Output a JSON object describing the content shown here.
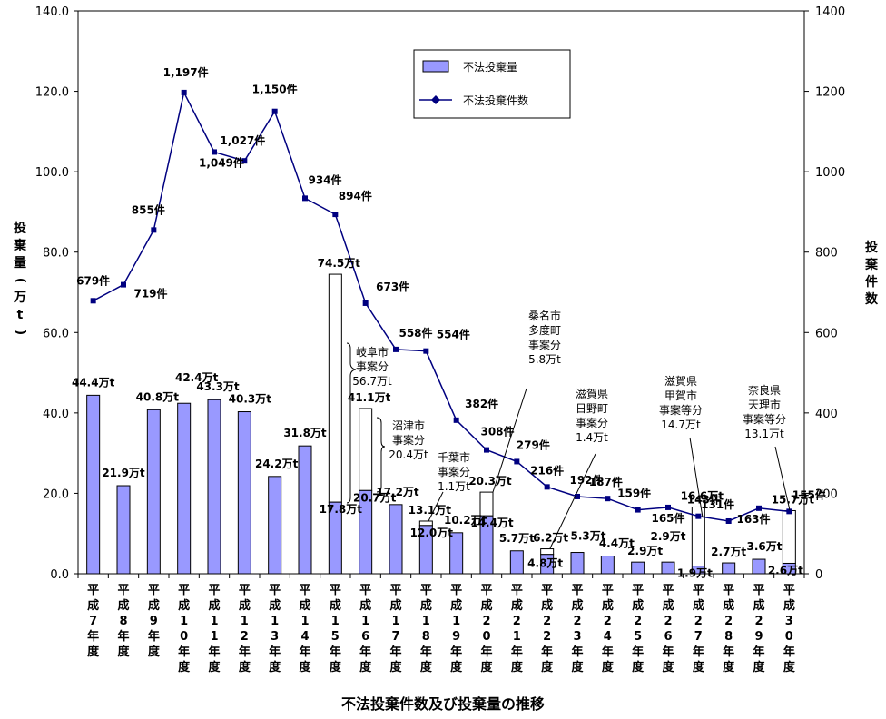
{
  "chart_data": {
    "type": "bar+line",
    "title": "不法投棄件数及び投棄量の推移",
    "ylabel_left": "投棄量(万t)",
    "ylabel_right": "投棄件数",
    "ylim_left": [
      0,
      140
    ],
    "ylim_right": [
      0,
      1400
    ],
    "yticks_left": [
      "0.0",
      "20.0",
      "40.0",
      "60.0",
      "80.0",
      "100.0",
      "120.0",
      "140.0"
    ],
    "yticks_right": [
      "0",
      "200",
      "400",
      "600",
      "800",
      "1000",
      "1200",
      "1400"
    ],
    "legend": {
      "placement": "top-center",
      "bar": "不法投棄量",
      "line": "不法投棄件数"
    },
    "categories": [
      "平成7年度",
      "平成8年度",
      "平成9年度",
      "平成10年度",
      "平成11年度",
      "平成12年度",
      "平成13年度",
      "平成14年度",
      "平成15年度",
      "平成16年度",
      "平成17年度",
      "平成18年度",
      "平成19年度",
      "平成20年度",
      "平成21年度",
      "平成22年度",
      "平成23年度",
      "平成24年度",
      "平成25年度",
      "平成26年度",
      "平成27年度",
      "平成28年度",
      "平成29年度",
      "平成30年度"
    ],
    "bars_base": [
      44.4,
      21.9,
      40.8,
      42.4,
      43.3,
      40.3,
      24.2,
      31.8,
      17.8,
      20.7,
      17.2,
      12.0,
      10.2,
      14.4,
      5.7,
      4.8,
      5.3,
      4.4,
      2.9,
      2.9,
      1.9,
      2.7,
      3.6,
      2.6
    ],
    "bars_total": [
      44.4,
      21.9,
      40.8,
      42.4,
      43.3,
      40.3,
      24.2,
      31.8,
      74.5,
      41.1,
      17.2,
      13.1,
      10.2,
      20.3,
      5.7,
      6.2,
      5.3,
      4.4,
      2.9,
      2.9,
      16.6,
      2.7,
      3.6,
      15.7
    ],
    "bar_labels": [
      "44.4万t",
      "21.9万t",
      "40.8万t",
      "42.4万t",
      "43.3万t",
      "40.3万t",
      "24.2万t",
      "31.8万t",
      "17.8万t",
      "20.7万t",
      "17.2万t",
      "12.0万t",
      "10.2万t",
      "14.4万t",
      "5.7万t",
      "4.8万t",
      "5.3万t",
      "4.4万t",
      "2.9万t",
      "2.9万t",
      "1.9万t",
      "2.7万t",
      "3.6万t",
      "2.6万t"
    ],
    "total_labels": [
      "74.5万t",
      "41.1万t",
      "13.1万t",
      "20.3万t",
      "6.2万t",
      "16.6万t",
      "15.7万t"
    ],
    "counts": [
      679,
      719,
      855,
      1197,
      1049,
      1027,
      1150,
      934,
      894,
      673,
      558,
      554,
      382,
      308,
      279,
      216,
      192,
      187,
      159,
      165,
      143,
      131,
      163,
      155
    ],
    "count_labels": [
      "679件",
      "719件",
      "855件",
      "1,197件",
      "1,049件",
      "1,027件",
      "1,150件",
      "934件",
      "894件",
      "673件",
      "558件",
      "554件",
      "382件",
      "308件",
      "279件",
      "216件",
      "192件",
      "187件",
      "159件",
      "165件",
      "143件",
      "131件",
      "163件",
      "155件"
    ],
    "annotations": [
      [
        "岐阜市",
        "事案分",
        "56.7万t"
      ],
      [
        "沼津市",
        "事案分",
        "20.4万t"
      ],
      [
        "千葉市",
        "事案分",
        "1.1万t"
      ],
      [
        "桑名市",
        "多度町",
        "事案分",
        "5.8万t"
      ],
      [
        "滋賀県",
        "日野町",
        "事案分",
        "1.4万t"
      ],
      [
        "滋賀県",
        "甲賀市",
        "事案等分",
        "14.7万t"
      ],
      [
        "奈良県",
        "天理市",
        "事案等分",
        "13.1万t"
      ]
    ]
  }
}
